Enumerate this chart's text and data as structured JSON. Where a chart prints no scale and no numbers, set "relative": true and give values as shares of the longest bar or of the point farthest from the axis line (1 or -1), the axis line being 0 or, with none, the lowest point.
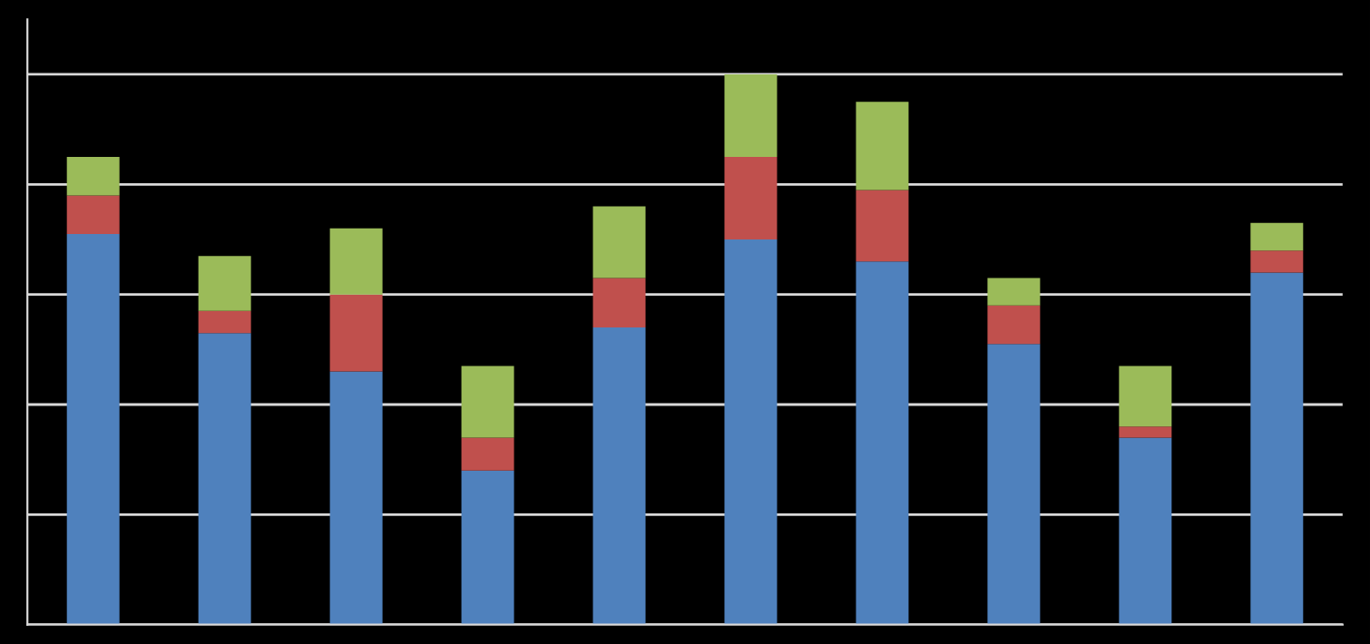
{
  "chart_data": {
    "type": "bar",
    "stacked": true,
    "relative": true,
    "grid": "y",
    "categories": [
      null,
      null,
      null,
      null,
      null,
      null,
      null,
      null,
      null,
      null
    ],
    "series": [
      {
        "color": "#4f81bd",
        "values": [
          0.71,
          0.53,
          0.46,
          0.28,
          0.54,
          0.7,
          0.66,
          0.51,
          0.34,
          0.64
        ]
      },
      {
        "color": "#c0504d",
        "values": [
          0.07,
          0.04,
          0.14,
          0.06,
          0.09,
          0.15,
          0.13,
          0.07,
          0.02,
          0.04
        ]
      },
      {
        "color": "#9bbb59",
        "values": [
          0.07,
          0.1,
          0.12,
          0.13,
          0.13,
          0.15,
          0.16,
          0.05,
          0.11,
          0.05
        ]
      }
    ]
  }
}
